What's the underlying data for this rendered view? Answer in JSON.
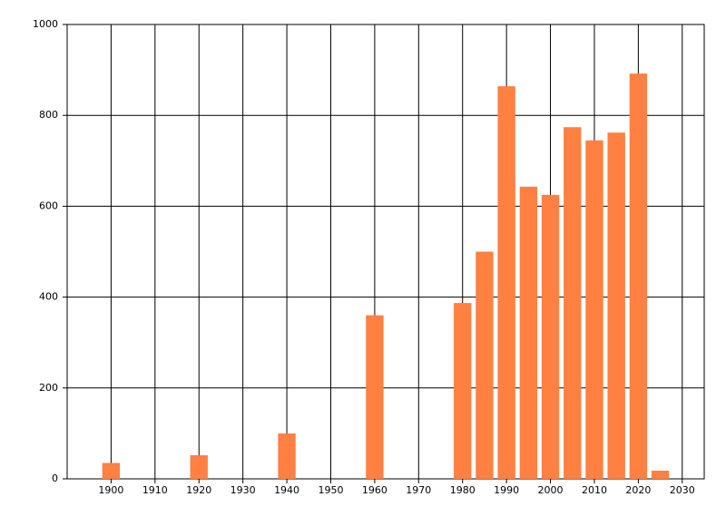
{
  "chart_data": {
    "type": "bar",
    "x": [
      1900,
      1920,
      1940,
      1960,
      1980,
      1985,
      1990,
      1995,
      2000,
      2005,
      2010,
      2015,
      2020,
      2025
    ],
    "values": [
      35,
      52,
      100,
      360,
      387,
      500,
      864,
      643,
      625,
      774,
      745,
      762,
      892,
      18
    ],
    "color": "#ff8040",
    "xlim": [
      1890,
      2035
    ],
    "xticks": [
      1900,
      1910,
      1920,
      1930,
      1940,
      1950,
      1960,
      1970,
      1980,
      1990,
      2000,
      2010,
      2020,
      2030
    ],
    "ylim": [
      0,
      1000
    ],
    "yticks": [
      0,
      200,
      400,
      600,
      800,
      1000
    ],
    "grid": true
  }
}
